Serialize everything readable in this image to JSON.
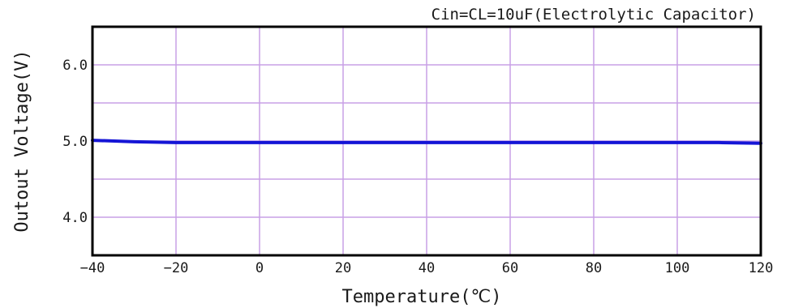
{
  "chart_data": {
    "type": "line",
    "title": "",
    "annotation": "Cin=CL=10uF(Electrolytic Capacitor)",
    "xlabel": "Temperature(℃)",
    "ylabel": "Outout Voltage(V)",
    "xlim": [
      -40,
      120
    ],
    "ylim": [
      3.5,
      6.5
    ],
    "x_ticks": [
      -40,
      -20,
      0,
      20,
      40,
      60,
      80,
      100,
      120
    ],
    "x_tick_labels": [
      "−40",
      "−20",
      "0",
      "20",
      "40",
      "60",
      "80",
      "100",
      "120"
    ],
    "y_ticks": [
      4.0,
      5.0,
      6.0
    ],
    "y_tick_labels": [
      "4.0",
      "5.0",
      "6.0"
    ],
    "y_gridlines": [
      4.0,
      4.5,
      5.0,
      5.5,
      6.0
    ],
    "grid": true,
    "legend": "none",
    "colors": {
      "series": "#1515d6",
      "grid": "#c9a0e6",
      "frame": "#000000",
      "background": "#ffffff"
    },
    "series": [
      {
        "x": [
          -40,
          -30,
          -20,
          -10,
          0,
          10,
          20,
          30,
          40,
          50,
          60,
          70,
          80,
          90,
          100,
          110,
          120
        ],
        "y": [
          5.01,
          4.99,
          4.98,
          4.98,
          4.98,
          4.98,
          4.98,
          4.98,
          4.98,
          4.98,
          4.98,
          4.98,
          4.98,
          4.98,
          4.98,
          4.98,
          4.97
        ]
      }
    ]
  }
}
